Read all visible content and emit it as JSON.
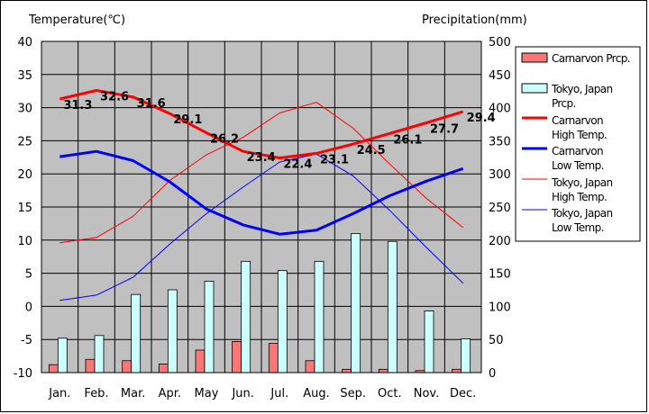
{
  "chart_data": {
    "type": "line+bar",
    "categories": [
      "Jan.",
      "Feb.",
      "Mar.",
      "Apr.",
      "May",
      "Jun.",
      "Jul.",
      "Aug.",
      "Sep.",
      "Oct.",
      "Nov.",
      "Dec."
    ],
    "y_left": {
      "label": "Temperature(℃)",
      "ylim": [
        -10,
        40
      ],
      "ticks": [
        "40",
        "35",
        "30",
        "25",
        "20",
        "15",
        "10",
        "5",
        "0",
        "-5",
        "-10"
      ]
    },
    "y_right": {
      "label": "Precipitation(mm)",
      "ylim": [
        0,
        500
      ],
      "ticks": [
        "500",
        "450",
        "400",
        "350",
        "300",
        "250",
        "200",
        "150",
        "100",
        "50",
        "0"
      ]
    },
    "grid": true,
    "legend_position": "right",
    "bar_series": [
      {
        "legend": "Carnarvon Prcp.",
        "color": "#f87878",
        "values": [
          12,
          20,
          18,
          13,
          34,
          47,
          44,
          18,
          5,
          5,
          3,
          5
        ]
      },
      {
        "legend": "Tokyo, Japan Prcp.",
        "color": "#ccffff",
        "values": [
          52,
          56,
          118,
          125,
          138,
          168,
          154,
          168,
          210,
          198,
          93,
          51
        ]
      }
    ],
    "line_series": [
      {
        "legend": "Carnarvon High Temp.",
        "color": "#ff0000",
        "width": 3,
        "values": [
          31.3,
          32.6,
          31.6,
          29.1,
          26.2,
          23.4,
          22.4,
          23.1,
          24.5,
          26.1,
          27.7,
          29.4
        ],
        "labels": [
          "31.3",
          "32.6",
          "31.6",
          "29.1",
          "26.2",
          "23.4",
          "22.4",
          "23.1",
          "24.5",
          "26.1",
          "27.7",
          "29.4"
        ]
      },
      {
        "legend": "Carnarvon Low Temp.",
        "color": "#0000ff",
        "width": 3,
        "values": [
          22.6,
          23.4,
          22.0,
          18.8,
          14.7,
          12.3,
          10.9,
          11.5,
          14.0,
          16.7,
          18.9,
          20.8
        ]
      },
      {
        "legend": "Tokyo, Japan High Temp.",
        "color": "#ff0000",
        "width": 1,
        "values": [
          9.6,
          10.4,
          13.6,
          19.0,
          22.9,
          25.5,
          29.2,
          30.8,
          26.9,
          21.5,
          16.3,
          11.9
        ]
      },
      {
        "legend": "Tokyo, Japan Low Temp.",
        "color": "#0000ff",
        "width": 1,
        "values": [
          0.9,
          1.7,
          4.4,
          9.4,
          14.0,
          18.0,
          21.8,
          23.0,
          19.7,
          14.5,
          8.9,
          3.5
        ]
      }
    ]
  }
}
